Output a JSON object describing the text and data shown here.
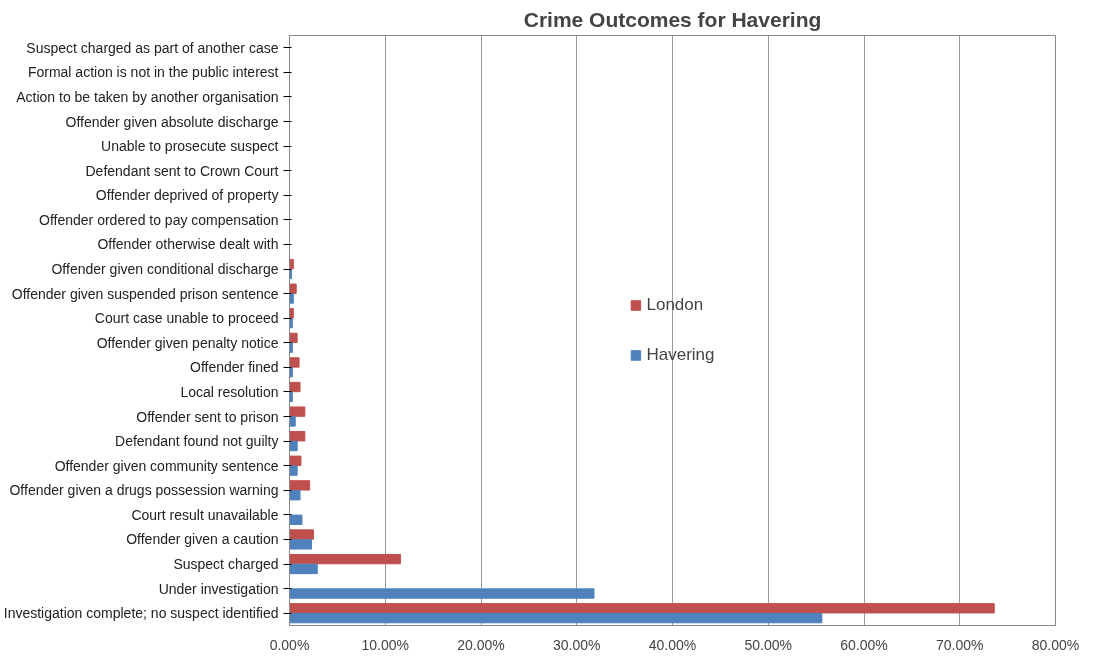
{
  "chart_data": {
    "type": "bar",
    "orientation": "horizontal",
    "title": "Crime Outcomes for Havering",
    "categories": [
      "Suspect charged as part of another case",
      "Formal action is not in the public interest",
      "Action to be taken by another organisation",
      "Offender given absolute discharge",
      "Unable to prosecute suspect",
      "Defendant sent to Crown Court",
      "Offender deprived of property",
      "Offender ordered to pay compensation",
      "Offender otherwise dealt with",
      "Offender given conditional discharge",
      "Offender given suspended prison sentence",
      "Court case unable to proceed",
      "Offender given penalty notice",
      "Offender fined",
      "Local resolution",
      "Offender sent to prison",
      "Defendant found not guilty",
      "Offender given community sentence",
      "Offender given a drugs possession warning",
      "Court result unavailable",
      "Offender given a caution",
      "Suspect charged",
      "Under investigation",
      "Investigation complete; no suspect identified"
    ],
    "series": [
      {
        "name": "London",
        "color": "#c0504d",
        "values": [
          null,
          null,
          null,
          null,
          null,
          null,
          null,
          null,
          null,
          0.4,
          0.7,
          0.4,
          0.8,
          1.0,
          1.1,
          1.6,
          1.6,
          1.2,
          2.1,
          null,
          2.5,
          11.6,
          null,
          73.6
        ]
      },
      {
        "name": "Havering",
        "color": "#4f81bd",
        "values": [
          null,
          null,
          null,
          null,
          null,
          null,
          null,
          null,
          null,
          0.2,
          0.4,
          0.3,
          0.3,
          0.3,
          0.3,
          0.6,
          0.8,
          0.8,
          1.1,
          1.3,
          2.3,
          2.9,
          31.8,
          55.6
        ]
      }
    ],
    "xlim": [
      0,
      80
    ],
    "xticks": [
      {
        "value": 0,
        "label": "0.00%"
      },
      {
        "value": 10,
        "label": "10.00%"
      },
      {
        "value": 20,
        "label": "20.00%"
      },
      {
        "value": 30,
        "label": "30.00%"
      },
      {
        "value": 40,
        "label": "40.00%"
      },
      {
        "value": 50,
        "label": "50.00%"
      },
      {
        "value": 60,
        "label": "60.00%"
      },
      {
        "value": 70,
        "label": "70.00%"
      },
      {
        "value": 80,
        "label": "80.00%"
      }
    ],
    "grid": "x",
    "legend": "center"
  }
}
